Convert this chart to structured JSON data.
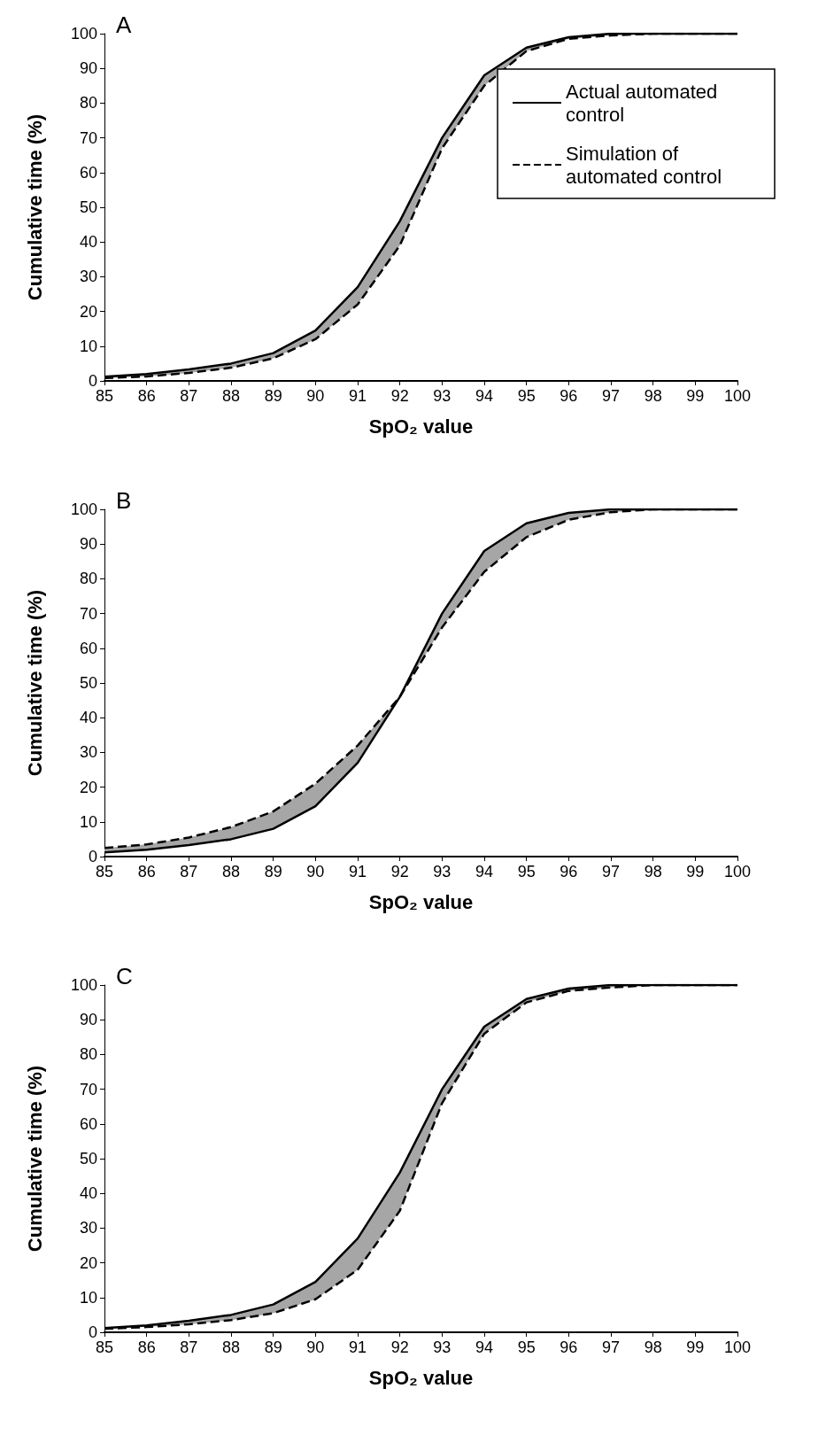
{
  "chart_data": [
    {
      "type": "line",
      "title": "A",
      "xlabel": "SpO₂ value",
      "ylabel": "Cumulative time (%)",
      "x": [
        85,
        86,
        87,
        88,
        89,
        90,
        91,
        92,
        93,
        94,
        95,
        96,
        97,
        98,
        99,
        100
      ],
      "xlim": [
        85,
        100
      ],
      "xticks": [
        85,
        86,
        87,
        88,
        89,
        90,
        91,
        92,
        93,
        94,
        95,
        96,
        97,
        98,
        99,
        100
      ],
      "ylim": [
        0,
        100
      ],
      "yticks": [
        0,
        10,
        20,
        30,
        40,
        50,
        60,
        70,
        80,
        90,
        100
      ],
      "grid": false,
      "marker": "none",
      "legend": "top right",
      "series": [
        {
          "name": "Actual automated control",
          "color": "#000000",
          "line_style": "solid",
          "values": [
            1.2,
            2,
            3.3,
            5,
            8,
            14.5,
            27,
            46,
            70,
            88,
            96,
            99,
            100,
            100,
            100,
            100
          ]
        },
        {
          "name": "Simulation of automated control",
          "color": "#000000",
          "line_style": "dashed",
          "values": [
            0.8,
            1.3,
            2.3,
            3.8,
            6.5,
            12,
            22,
            39,
            67,
            85,
            95,
            98.5,
            99.5,
            100,
            100,
            100
          ],
          "lower": [
            0.8,
            1.3,
            2.3,
            3.8,
            6.5,
            12,
            22,
            39,
            67,
            85,
            95,
            98.5,
            99.5,
            100,
            100,
            100
          ],
          "upper": [
            1.2,
            2,
            3.3,
            5,
            8,
            14.5,
            27,
            46,
            70,
            88,
            96,
            99,
            100,
            100,
            100,
            100
          ]
        }
      ]
    },
    {
      "type": "line",
      "title": "B",
      "xlabel": "SpO₂ value",
      "ylabel": "Cumulative time (%)",
      "x": [
        85,
        86,
        87,
        88,
        89,
        90,
        91,
        92,
        93,
        94,
        95,
        96,
        97,
        98,
        99,
        100
      ],
      "xlim": [
        85,
        100
      ],
      "xticks": [
        85,
        86,
        87,
        88,
        89,
        90,
        91,
        92,
        93,
        94,
        95,
        96,
        97,
        98,
        99,
        100
      ],
      "ylim": [
        0,
        100
      ],
      "yticks": [
        0,
        10,
        20,
        30,
        40,
        50,
        60,
        70,
        80,
        90,
        100
      ],
      "grid": false,
      "marker": "none",
      "series": [
        {
          "color": "#000000",
          "line_style": "solid",
          "values": [
            1.2,
            2,
            3.3,
            5,
            8,
            14.5,
            27,
            46,
            70,
            88,
            96,
            99,
            100,
            100,
            100,
            100
          ]
        },
        {
          "color": "#000000",
          "line_style": "dashed",
          "values": [
            2.5,
            3.5,
            5.5,
            8.5,
            13,
            21,
            32,
            46,
            66,
            82,
            92,
            97,
            99.2,
            100,
            100,
            100
          ],
          "lower": [
            1.2,
            2,
            3.3,
            5,
            8,
            14.5,
            27,
            46,
            66,
            82,
            92,
            97,
            99.2,
            100,
            100,
            100
          ],
          "upper": [
            2.5,
            3.5,
            5.5,
            8.5,
            13,
            21,
            32,
            46,
            70,
            88,
            96,
            99,
            100,
            100,
            100,
            100
          ]
        }
      ]
    },
    {
      "type": "line",
      "title": "C",
      "xlabel": "SpO₂ value",
      "ylabel": "Cumulative time (%)",
      "x": [
        85,
        86,
        87,
        88,
        89,
        90,
        91,
        92,
        93,
        94,
        95,
        96,
        97,
        98,
        99,
        100
      ],
      "xlim": [
        85,
        100
      ],
      "xticks": [
        85,
        86,
        87,
        88,
        89,
        90,
        91,
        92,
        93,
        94,
        95,
        96,
        97,
        98,
        99,
        100
      ],
      "ylim": [
        0,
        100
      ],
      "yticks": [
        0,
        10,
        20,
        30,
        40,
        50,
        60,
        70,
        80,
        90,
        100
      ],
      "grid": false,
      "marker": "none",
      "series": [
        {
          "color": "#000000",
          "line_style": "solid",
          "values": [
            1.2,
            2,
            3.3,
            5,
            8,
            14.5,
            27,
            46,
            70,
            88,
            96,
            99,
            100,
            100,
            100,
            100
          ]
        },
        {
          "color": "#000000",
          "line_style": "dashed",
          "values": [
            1,
            1.5,
            2.3,
            3.5,
            5.5,
            9.5,
            18,
            35,
            66,
            86,
            95,
            98.3,
            99.3,
            100,
            100,
            100
          ],
          "lower": [
            1,
            1.5,
            2.3,
            3.5,
            5.5,
            9.5,
            18,
            35,
            66,
            86,
            95,
            98.3,
            99.3,
            100,
            100,
            100
          ],
          "upper": [
            1.2,
            2,
            3.3,
            5,
            8,
            14.5,
            27,
            46,
            70,
            88,
            96,
            99,
            100,
            100,
            100,
            100
          ]
        }
      ]
    }
  ]
}
